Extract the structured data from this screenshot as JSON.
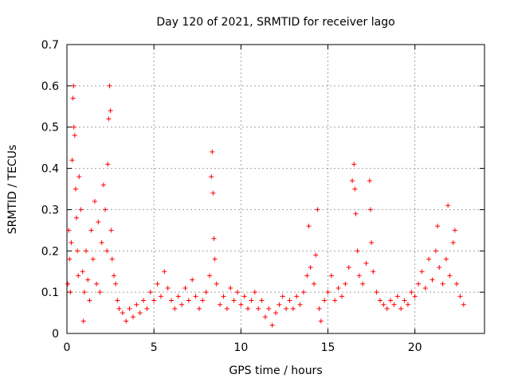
{
  "chart_data": {
    "type": "scatter",
    "title": "Day 120 of 2021, SRMTID for receiver lago",
    "xlabel": "GPS time / hours",
    "ylabel": "SRMTID / TECUs",
    "xlim": [
      0,
      24
    ],
    "ylim": [
      0,
      0.7
    ],
    "xticks": [
      0,
      5,
      10,
      15,
      20
    ],
    "xtick_labels": [
      "0",
      "5",
      "10",
      "15",
      "20"
    ],
    "yticks": [
      0,
      0.1,
      0.2,
      0.3,
      0.4,
      0.5,
      0.6,
      0.7
    ],
    "ytick_labels": [
      "0",
      "0.1",
      "0.2",
      "0.3",
      "0.4",
      "0.5",
      "0.6",
      "0.7"
    ],
    "grid": true,
    "marker": "+",
    "color": "#ff0000",
    "series": [
      {
        "name": "SRMTID",
        "points": [
          [
            0.05,
            0.12
          ],
          [
            0.1,
            0.25
          ],
          [
            0.15,
            0.18
          ],
          [
            0.2,
            0.1
          ],
          [
            0.25,
            0.22
          ],
          [
            0.3,
            0.42
          ],
          [
            0.35,
            0.57
          ],
          [
            0.38,
            0.6
          ],
          [
            0.4,
            0.5
          ],
          [
            0.45,
            0.48
          ],
          [
            0.5,
            0.35
          ],
          [
            0.55,
            0.28
          ],
          [
            0.6,
            0.2
          ],
          [
            0.65,
            0.14
          ],
          [
            0.7,
            0.38
          ],
          [
            0.8,
            0.3
          ],
          [
            0.9,
            0.15
          ],
          [
            0.95,
            0.03
          ],
          [
            1.0,
            0.1
          ],
          [
            1.1,
            0.2
          ],
          [
            1.2,
            0.13
          ],
          [
            1.3,
            0.08
          ],
          [
            1.4,
            0.25
          ],
          [
            1.5,
            0.18
          ],
          [
            1.6,
            0.32
          ],
          [
            1.7,
            0.12
          ],
          [
            1.8,
            0.27
          ],
          [
            1.9,
            0.1
          ],
          [
            2.0,
            0.22
          ],
          [
            2.1,
            0.36
          ],
          [
            2.2,
            0.3
          ],
          [
            2.3,
            0.2
          ],
          [
            2.35,
            0.41
          ],
          [
            2.4,
            0.52
          ],
          [
            2.45,
            0.6
          ],
          [
            2.5,
            0.54
          ],
          [
            2.55,
            0.25
          ],
          [
            2.6,
            0.18
          ],
          [
            2.7,
            0.14
          ],
          [
            2.8,
            0.12
          ],
          [
            2.9,
            0.08
          ],
          [
            3.0,
            0.06
          ],
          [
            3.2,
            0.05
          ],
          [
            3.4,
            0.03
          ],
          [
            3.6,
            0.06
          ],
          [
            3.8,
            0.04
          ],
          [
            4.0,
            0.07
          ],
          [
            4.2,
            0.05
          ],
          [
            4.4,
            0.08
          ],
          [
            4.6,
            0.06
          ],
          [
            4.8,
            0.1
          ],
          [
            5.0,
            0.08
          ],
          [
            5.2,
            0.12
          ],
          [
            5.4,
            0.09
          ],
          [
            5.6,
            0.15
          ],
          [
            5.8,
            0.11
          ],
          [
            6.0,
            0.08
          ],
          [
            6.2,
            0.06
          ],
          [
            6.4,
            0.09
          ],
          [
            6.6,
            0.07
          ],
          [
            6.8,
            0.11
          ],
          [
            7.0,
            0.08
          ],
          [
            7.2,
            0.13
          ],
          [
            7.4,
            0.09
          ],
          [
            7.6,
            0.06
          ],
          [
            7.8,
            0.08
          ],
          [
            8.0,
            0.1
          ],
          [
            8.2,
            0.14
          ],
          [
            8.3,
            0.38
          ],
          [
            8.35,
            0.44
          ],
          [
            8.4,
            0.34
          ],
          [
            8.45,
            0.23
          ],
          [
            8.5,
            0.18
          ],
          [
            8.6,
            0.12
          ],
          [
            8.8,
            0.07
          ],
          [
            9.0,
            0.09
          ],
          [
            9.2,
            0.06
          ],
          [
            9.4,
            0.11
          ],
          [
            9.6,
            0.08
          ],
          [
            9.8,
            0.1
          ],
          [
            10.0,
            0.07
          ],
          [
            10.2,
            0.09
          ],
          [
            10.4,
            0.06
          ],
          [
            10.6,
            0.08
          ],
          [
            10.8,
            0.1
          ],
          [
            11.0,
            0.06
          ],
          [
            11.2,
            0.08
          ],
          [
            11.4,
            0.04
          ],
          [
            11.6,
            0.06
          ],
          [
            11.8,
            0.02
          ],
          [
            12.0,
            0.05
          ],
          [
            12.2,
            0.07
          ],
          [
            12.4,
            0.09
          ],
          [
            12.6,
            0.06
          ],
          [
            12.8,
            0.08
          ],
          [
            13.0,
            0.06
          ],
          [
            13.2,
            0.09
          ],
          [
            13.4,
            0.07
          ],
          [
            13.6,
            0.1
          ],
          [
            13.8,
            0.14
          ],
          [
            13.9,
            0.26
          ],
          [
            14.0,
            0.16
          ],
          [
            14.2,
            0.12
          ],
          [
            14.3,
            0.19
          ],
          [
            14.4,
            0.3
          ],
          [
            14.5,
            0.06
          ],
          [
            14.6,
            0.03
          ],
          [
            14.8,
            0.08
          ],
          [
            15.0,
            0.1
          ],
          [
            15.2,
            0.14
          ],
          [
            15.4,
            0.08
          ],
          [
            15.6,
            0.11
          ],
          [
            15.8,
            0.09
          ],
          [
            16.0,
            0.12
          ],
          [
            16.2,
            0.16
          ],
          [
            16.4,
            0.37
          ],
          [
            16.5,
            0.41
          ],
          [
            16.55,
            0.35
          ],
          [
            16.6,
            0.29
          ],
          [
            16.7,
            0.2
          ],
          [
            16.8,
            0.14
          ],
          [
            17.0,
            0.12
          ],
          [
            17.2,
            0.17
          ],
          [
            17.4,
            0.37
          ],
          [
            17.45,
            0.3
          ],
          [
            17.5,
            0.22
          ],
          [
            17.6,
            0.15
          ],
          [
            17.8,
            0.1
          ],
          [
            18.0,
            0.08
          ],
          [
            18.2,
            0.07
          ],
          [
            18.4,
            0.06
          ],
          [
            18.6,
            0.08
          ],
          [
            18.8,
            0.07
          ],
          [
            19.0,
            0.09
          ],
          [
            19.2,
            0.06
          ],
          [
            19.4,
            0.08
          ],
          [
            19.6,
            0.07
          ],
          [
            19.8,
            0.1
          ],
          [
            20.0,
            0.09
          ],
          [
            20.2,
            0.12
          ],
          [
            20.4,
            0.15
          ],
          [
            20.6,
            0.11
          ],
          [
            20.8,
            0.18
          ],
          [
            21.0,
            0.13
          ],
          [
            21.2,
            0.2
          ],
          [
            21.3,
            0.26
          ],
          [
            21.4,
            0.16
          ],
          [
            21.6,
            0.12
          ],
          [
            21.8,
            0.18
          ],
          [
            21.9,
            0.31
          ],
          [
            22.0,
            0.14
          ],
          [
            22.2,
            0.22
          ],
          [
            22.3,
            0.25
          ],
          [
            22.4,
            0.12
          ],
          [
            22.6,
            0.09
          ],
          [
            22.8,
            0.07
          ]
        ]
      }
    ]
  }
}
